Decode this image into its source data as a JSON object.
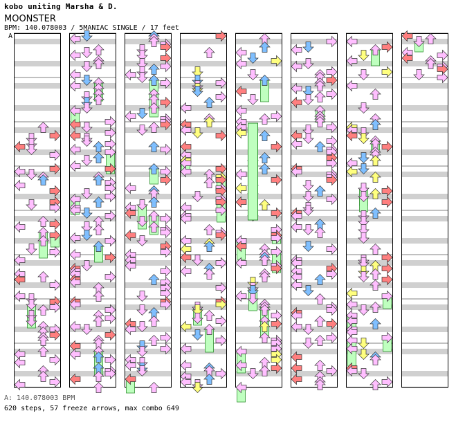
{
  "header": {
    "artist": "kobo uniting Marsha & D.",
    "song": "MOONSTER",
    "info": "BPM: 140.078003 / 5MANIAC SINGLE / 17 feet"
  },
  "segment_label": "A",
  "footer": {
    "bpm": "A: 140.078003 BPM",
    "stats": "620 steps, 57 freeze arrows, max combo 649"
  },
  "colors": {
    "left": "#ff7f7f",
    "down": "#7fbfff",
    "up": "#7fbfff",
    "right": "#ff7f7f",
    "eighth": "#ffbfff",
    "sixteenth": "#ffff7f",
    "freeze": "#bfffbf",
    "stripe": "#d0d0d0"
  },
  "chart_data": {
    "type": "table",
    "title": "MOONSTER",
    "bpm": 140.078003,
    "difficulty": "5MANIAC SINGLE",
    "level": 17,
    "steps": 620,
    "freeze_arrows": 57,
    "max_combo": 649,
    "columns": 8,
    "measures_per_column": 8
  }
}
